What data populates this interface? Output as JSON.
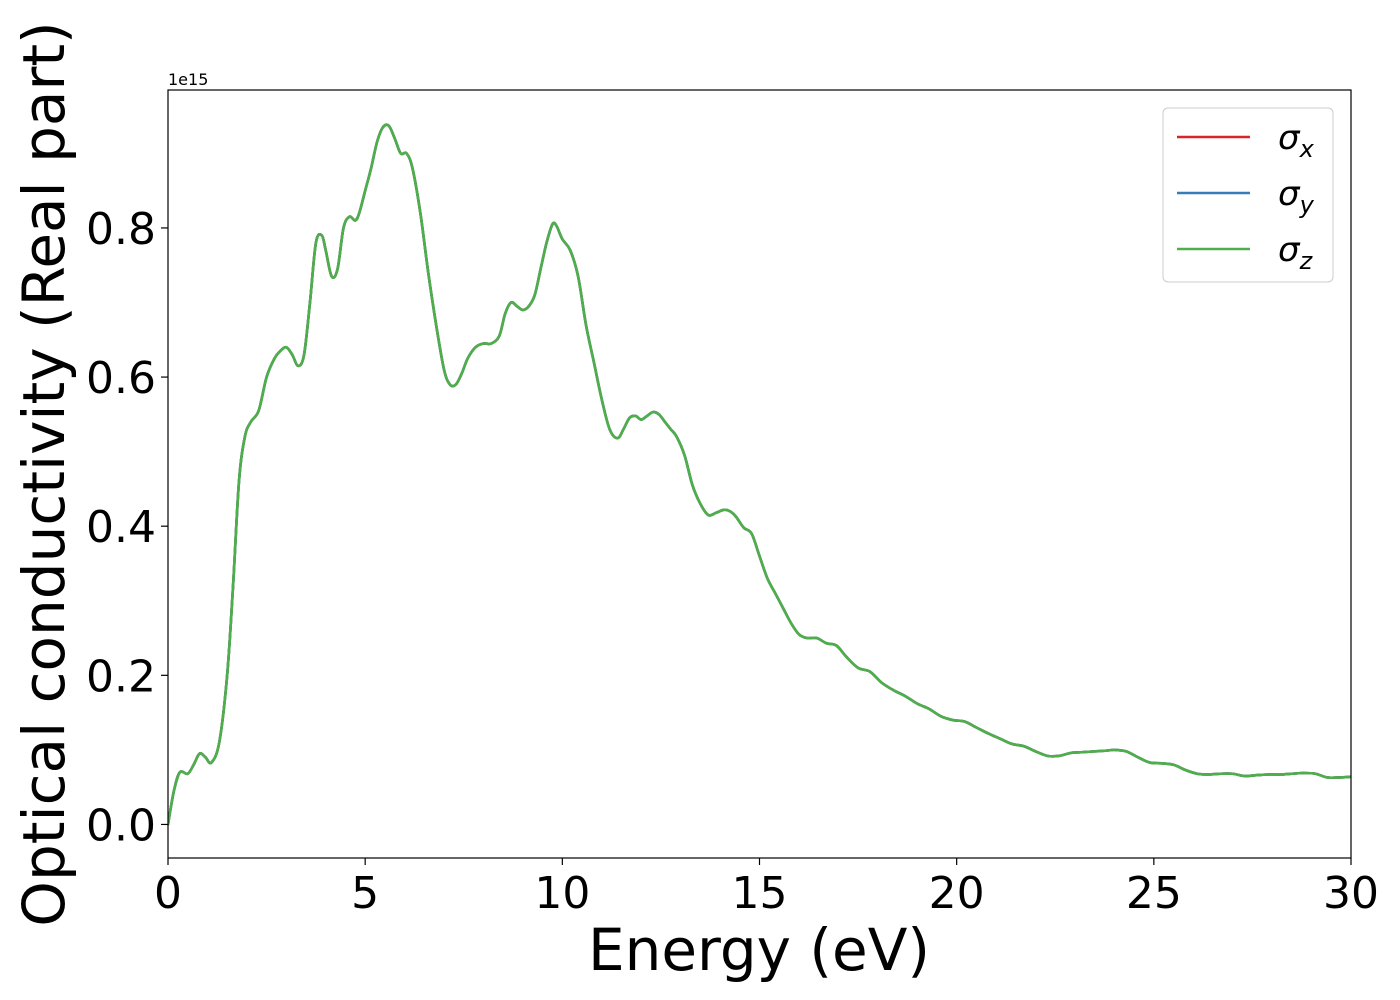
{
  "chart_data": {
    "type": "line",
    "xlabel": "Energy (eV)",
    "ylabel": "Optical conductivity (Real part)",
    "y_offset_label": "1e15",
    "xlim": [
      0,
      30
    ],
    "ylim": [
      -0.045,
      0.985
    ],
    "xticks": [
      0,
      5,
      10,
      15,
      20,
      25,
      30
    ],
    "xtick_labels": [
      "0",
      "5",
      "10",
      "15",
      "20",
      "25",
      "30"
    ],
    "yticks": [
      0.0,
      0.2,
      0.4,
      0.6,
      0.8
    ],
    "ytick_labels": [
      "0.0",
      "0.2",
      "0.4",
      "0.6",
      "0.8"
    ],
    "grid": false,
    "legend_position": "top-right",
    "x": [
      0.0,
      0.15,
      0.3,
      0.5,
      0.65,
      0.8,
      0.95,
      1.1,
      1.3,
      1.5,
      1.65,
      1.8,
      1.95,
      2.1,
      2.3,
      2.5,
      2.7,
      2.85,
      3.0,
      3.15,
      3.3,
      3.45,
      3.6,
      3.75,
      3.9,
      4.0,
      4.15,
      4.3,
      4.45,
      4.6,
      4.75,
      4.85,
      5.0,
      5.15,
      5.3,
      5.45,
      5.6,
      5.75,
      5.9,
      6.05,
      6.2,
      6.4,
      6.6,
      6.8,
      7.0,
      7.15,
      7.3,
      7.45,
      7.6,
      7.8,
      8.0,
      8.2,
      8.4,
      8.55,
      8.7,
      8.85,
      9.0,
      9.15,
      9.3,
      9.45,
      9.6,
      9.75,
      9.85,
      10.0,
      10.2,
      10.4,
      10.6,
      10.8,
      11.0,
      11.2,
      11.4,
      11.55,
      11.7,
      11.85,
      12.0,
      12.15,
      12.3,
      12.45,
      12.6,
      12.75,
      12.9,
      13.1,
      13.3,
      13.5,
      13.7,
      13.9,
      14.1,
      14.25,
      14.4,
      14.6,
      14.8,
      15.0,
      15.2,
      15.4,
      15.6,
      15.8,
      16.0,
      16.2,
      16.45,
      16.7,
      16.95,
      17.2,
      17.5,
      17.8,
      18.1,
      18.4,
      18.7,
      19.0,
      19.3,
      19.6,
      19.9,
      20.2,
      20.5,
      20.8,
      21.1,
      21.4,
      21.7,
      22.0,
      22.3,
      22.6,
      22.9,
      23.2,
      23.5,
      23.8,
      24.0,
      24.3,
      24.6,
      24.9,
      25.2,
      25.5,
      25.8,
      26.1,
      26.4,
      26.7,
      27.0,
      27.3,
      27.6,
      27.9,
      28.2,
      28.5,
      28.8,
      29.1,
      29.4,
      29.7,
      30.0
    ],
    "series": [
      {
        "name": "σx",
        "color": "#d62728",
        "values": [
          0.0,
          0.045,
          0.07,
          0.068,
          0.08,
          0.095,
          0.09,
          0.083,
          0.11,
          0.2,
          0.32,
          0.46,
          0.52,
          0.54,
          0.555,
          0.6,
          0.625,
          0.635,
          0.64,
          0.63,
          0.615,
          0.63,
          0.7,
          0.78,
          0.79,
          0.77,
          0.735,
          0.745,
          0.8,
          0.815,
          0.81,
          0.82,
          0.85,
          0.88,
          0.915,
          0.935,
          0.937,
          0.92,
          0.9,
          0.9,
          0.88,
          0.82,
          0.74,
          0.67,
          0.61,
          0.59,
          0.59,
          0.605,
          0.625,
          0.64,
          0.645,
          0.645,
          0.655,
          0.685,
          0.7,
          0.695,
          0.69,
          0.695,
          0.71,
          0.745,
          0.78,
          0.805,
          0.803,
          0.785,
          0.77,
          0.735,
          0.67,
          0.62,
          0.57,
          0.53,
          0.518,
          0.53,
          0.545,
          0.548,
          0.543,
          0.548,
          0.553,
          0.55,
          0.54,
          0.53,
          0.52,
          0.495,
          0.455,
          0.43,
          0.415,
          0.418,
          0.422,
          0.42,
          0.413,
          0.398,
          0.39,
          0.36,
          0.33,
          0.31,
          0.29,
          0.27,
          0.255,
          0.25,
          0.25,
          0.243,
          0.24,
          0.225,
          0.21,
          0.205,
          0.19,
          0.18,
          0.172,
          0.162,
          0.155,
          0.145,
          0.14,
          0.138,
          0.13,
          0.122,
          0.115,
          0.108,
          0.105,
          0.098,
          0.092,
          0.092,
          0.096,
          0.097,
          0.098,
          0.099,
          0.1,
          0.098,
          0.09,
          0.083,
          0.082,
          0.08,
          0.073,
          0.068,
          0.067,
          0.068,
          0.068,
          0.065,
          0.066,
          0.067,
          0.067,
          0.068,
          0.069,
          0.068,
          0.063,
          0.063,
          0.064
        ]
      },
      {
        "name": "σy",
        "color": "#377eb8",
        "values": [
          0.0,
          0.045,
          0.07,
          0.068,
          0.08,
          0.095,
          0.09,
          0.083,
          0.11,
          0.2,
          0.32,
          0.46,
          0.52,
          0.54,
          0.555,
          0.6,
          0.625,
          0.635,
          0.64,
          0.63,
          0.615,
          0.63,
          0.7,
          0.78,
          0.79,
          0.77,
          0.735,
          0.745,
          0.8,
          0.815,
          0.81,
          0.82,
          0.85,
          0.88,
          0.915,
          0.935,
          0.937,
          0.92,
          0.9,
          0.9,
          0.88,
          0.82,
          0.74,
          0.67,
          0.61,
          0.59,
          0.59,
          0.605,
          0.625,
          0.64,
          0.645,
          0.645,
          0.655,
          0.685,
          0.7,
          0.695,
          0.69,
          0.695,
          0.71,
          0.745,
          0.78,
          0.805,
          0.803,
          0.785,
          0.77,
          0.735,
          0.67,
          0.62,
          0.57,
          0.53,
          0.518,
          0.53,
          0.545,
          0.548,
          0.543,
          0.548,
          0.553,
          0.55,
          0.54,
          0.53,
          0.52,
          0.495,
          0.455,
          0.43,
          0.415,
          0.418,
          0.422,
          0.42,
          0.413,
          0.398,
          0.39,
          0.36,
          0.33,
          0.31,
          0.29,
          0.27,
          0.255,
          0.25,
          0.25,
          0.243,
          0.24,
          0.225,
          0.21,
          0.205,
          0.19,
          0.18,
          0.172,
          0.162,
          0.155,
          0.145,
          0.14,
          0.138,
          0.13,
          0.122,
          0.115,
          0.108,
          0.105,
          0.098,
          0.092,
          0.092,
          0.096,
          0.097,
          0.098,
          0.099,
          0.1,
          0.098,
          0.09,
          0.083,
          0.082,
          0.08,
          0.073,
          0.068,
          0.067,
          0.068,
          0.068,
          0.065,
          0.066,
          0.067,
          0.067,
          0.068,
          0.069,
          0.068,
          0.063,
          0.063,
          0.064
        ]
      },
      {
        "name": "σz",
        "color": "#4daf4a",
        "values": [
          0.0,
          0.045,
          0.07,
          0.068,
          0.08,
          0.095,
          0.09,
          0.083,
          0.11,
          0.2,
          0.32,
          0.46,
          0.52,
          0.54,
          0.555,
          0.6,
          0.625,
          0.635,
          0.64,
          0.63,
          0.615,
          0.63,
          0.7,
          0.78,
          0.79,
          0.77,
          0.735,
          0.745,
          0.8,
          0.815,
          0.81,
          0.82,
          0.85,
          0.88,
          0.915,
          0.935,
          0.937,
          0.92,
          0.9,
          0.9,
          0.88,
          0.82,
          0.74,
          0.67,
          0.61,
          0.59,
          0.59,
          0.605,
          0.625,
          0.64,
          0.645,
          0.645,
          0.655,
          0.685,
          0.7,
          0.695,
          0.69,
          0.695,
          0.71,
          0.745,
          0.78,
          0.805,
          0.803,
          0.785,
          0.77,
          0.735,
          0.67,
          0.62,
          0.57,
          0.53,
          0.518,
          0.53,
          0.545,
          0.548,
          0.543,
          0.548,
          0.553,
          0.55,
          0.54,
          0.53,
          0.52,
          0.495,
          0.455,
          0.43,
          0.415,
          0.418,
          0.422,
          0.42,
          0.413,
          0.398,
          0.39,
          0.36,
          0.33,
          0.31,
          0.29,
          0.27,
          0.255,
          0.25,
          0.25,
          0.243,
          0.24,
          0.225,
          0.21,
          0.205,
          0.19,
          0.18,
          0.172,
          0.162,
          0.155,
          0.145,
          0.14,
          0.138,
          0.13,
          0.122,
          0.115,
          0.108,
          0.105,
          0.098,
          0.092,
          0.092,
          0.096,
          0.097,
          0.098,
          0.099,
          0.1,
          0.098,
          0.09,
          0.083,
          0.082,
          0.08,
          0.073,
          0.068,
          0.067,
          0.068,
          0.068,
          0.065,
          0.066,
          0.067,
          0.067,
          0.068,
          0.069,
          0.068,
          0.063,
          0.063,
          0.064
        ]
      }
    ],
    "legend": [
      {
        "symbol": "σ",
        "sub": "x",
        "color": "#d62728"
      },
      {
        "symbol": "σ",
        "sub": "y",
        "color": "#377eb8"
      },
      {
        "symbol": "σ",
        "sub": "z",
        "color": "#4daf4a"
      }
    ]
  }
}
